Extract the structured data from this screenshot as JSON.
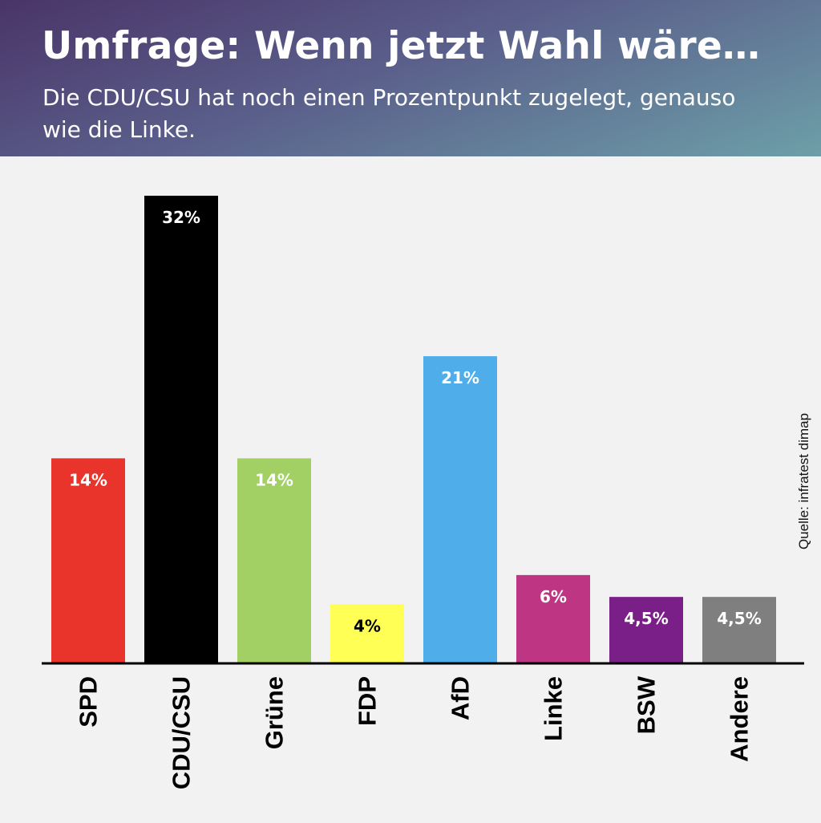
{
  "header": {
    "title": "Umfrage: Wenn jetzt Wahl wäre…",
    "subtitle": "Die CDU/CSU hat noch einen Prozentpunkt zugelegt, genauso wie die Linke."
  },
  "source": "Quelle: infratest dimap",
  "chart_data": {
    "type": "bar",
    "categories": [
      "SPD",
      "CDU/CSU",
      "Grüne",
      "FDP",
      "AfD",
      "Linke",
      "BSW",
      "Andere"
    ],
    "values": [
      14,
      32,
      14,
      4,
      21,
      6,
      4.5,
      4.5
    ],
    "value_labels": [
      "14%",
      "32%",
      "14%",
      "4%",
      "21%",
      "6%",
      "4,5%",
      "4,5%"
    ],
    "colors": [
      "#e8342a",
      "#000000",
      "#a2d065",
      "#ffff55",
      "#4fadea",
      "#be3584",
      "#7a1f87",
      "#7f7f7f"
    ],
    "label_colors": [
      "#ffffff",
      "#ffffff",
      "#ffffff",
      "#000000",
      "#ffffff",
      "#ffffff",
      "#ffffff",
      "#ffffff"
    ],
    "ylim": [
      0,
      32
    ],
    "grid": false,
    "legend": "none"
  }
}
